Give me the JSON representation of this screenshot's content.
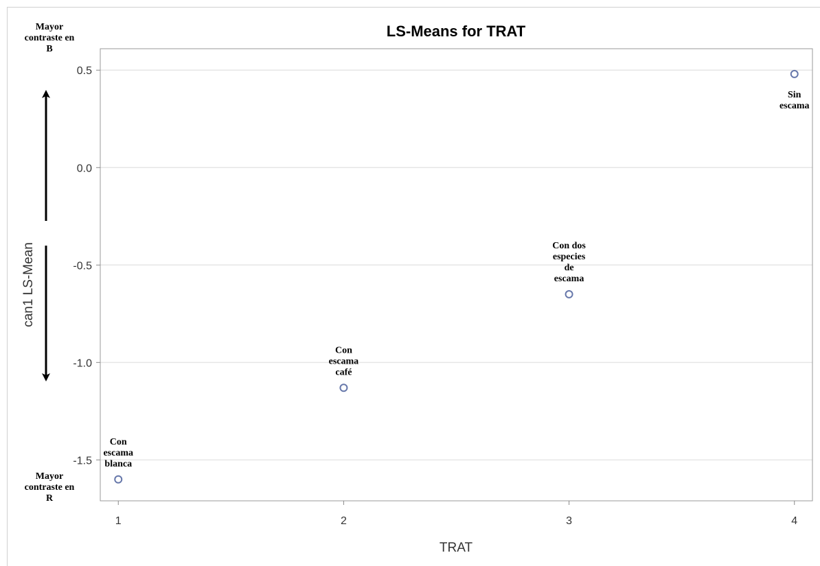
{
  "chart_data": {
    "type": "scatter",
    "title": "LS-Means for TRAT",
    "xlabel": "TRAT",
    "ylabel": "can1 LS-Mean",
    "x_ticks": [
      "1",
      "2",
      "3",
      "4"
    ],
    "y_ticks": [
      "0.5",
      "0.0",
      "-0.5",
      "-1.0",
      "-1.5"
    ],
    "xlim": [
      0.92,
      4.08
    ],
    "ylim": [
      -1.71,
      0.61
    ],
    "grid": true,
    "marker_color": "#6677aa",
    "points": [
      {
        "x": 1,
        "y": -1.6,
        "label": [
          "Con",
          "escama",
          "blanca"
        ]
      },
      {
        "x": 2,
        "y": -1.13,
        "label": [
          "Con",
          "escama",
          "café"
        ]
      },
      {
        "x": 3,
        "y": -0.65,
        "label": [
          "Con dos",
          "especies",
          "de",
          "escama"
        ]
      },
      {
        "x": 4,
        "y": 0.48,
        "label": [
          "Sin",
          "escama"
        ]
      }
    ],
    "annotations": {
      "top": [
        "Mayor",
        "contraste en",
        "B"
      ],
      "bottom": [
        "Mayor",
        "contraste en",
        "R"
      ]
    }
  }
}
